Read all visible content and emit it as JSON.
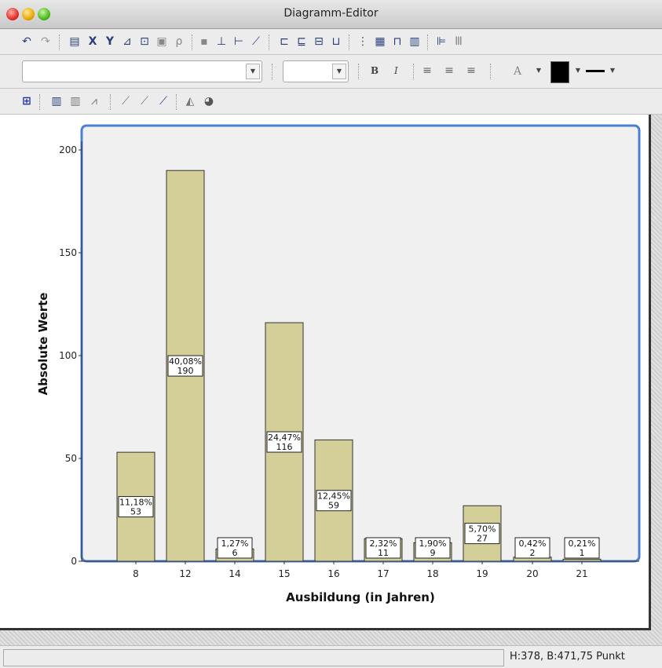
{
  "window": {
    "title": "Diagramm-Editor"
  },
  "toolbar2": {
    "font_name_value": "",
    "font_size_value": "",
    "bold_label": "B",
    "italic_label": "I",
    "font_color_label": "A"
  },
  "status": {
    "left_text": "",
    "dimensions_text": "H:378, B:471,75 Punkt"
  },
  "colors": {
    "bar_fill": "#d4cf99",
    "bar_stroke": "#333333",
    "plot_bg": "#f0f0f0",
    "selection_border": "#4a7fd4"
  },
  "chart_data": {
    "type": "bar",
    "categories": [
      "8",
      "12",
      "14",
      "15",
      "16",
      "17",
      "18",
      "19",
      "20",
      "21"
    ],
    "values": [
      53,
      190,
      6,
      116,
      59,
      11,
      9,
      27,
      2,
      1
    ],
    "percent_labels": [
      "11,18%",
      "40,08%",
      "1,27%",
      "24,47%",
      "12,45%",
      "2,32%",
      "1,90%",
      "5,70%",
      "0,42%",
      "0,21%"
    ],
    "count_labels": [
      "53",
      "190",
      "6",
      "116",
      "59",
      "11",
      "9",
      "27",
      "2",
      "1"
    ],
    "xlabel": "Ausbildung (in Jahren)",
    "ylabel": "Absolute Werte",
    "ylim": [
      0,
      210
    ],
    "yticks": [
      "0",
      "50",
      "100",
      "150",
      "200"
    ],
    "grid": false
  }
}
